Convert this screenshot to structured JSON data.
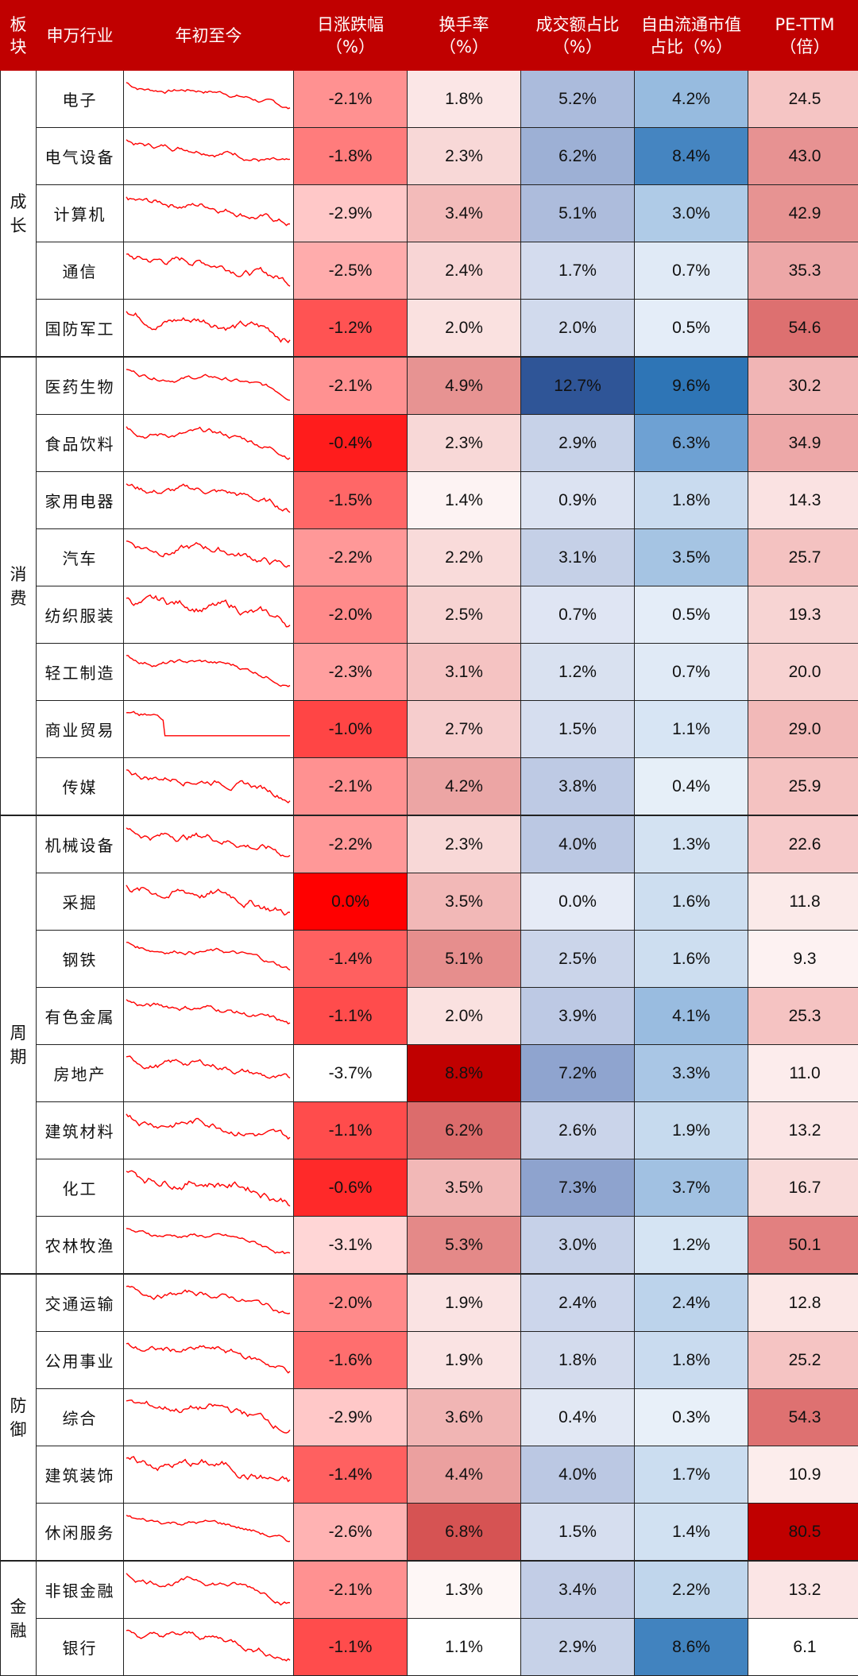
{
  "columns": {
    "block": [
      "板",
      "块"
    ],
    "industry": "申万行业",
    "ytd": "年初至今",
    "daily": [
      "日涨跌幅",
      "（%）"
    ],
    "turnover": [
      "换手率",
      "（%）"
    ],
    "volume_share": [
      "成交额占比",
      "（%）"
    ],
    "float_cap_share": [
      "自由流通市值",
      "占比（%）"
    ],
    "pe": [
      "PE-TTM",
      "（倍）"
    ]
  },
  "groups": [
    {
      "label": [
        "成",
        "长"
      ],
      "rows": [
        {
          "industry": "电子",
          "daily": "-2.1%",
          "turnover": "1.8%",
          "volume_share": "5.2%",
          "float_cap_share": "4.2%",
          "pe": "24.5"
        },
        {
          "industry": "电气设备",
          "daily": "-1.8%",
          "turnover": "2.3%",
          "volume_share": "6.2%",
          "float_cap_share": "8.4%",
          "pe": "43.0"
        },
        {
          "industry": "计算机",
          "daily": "-2.9%",
          "turnover": "3.4%",
          "volume_share": "5.1%",
          "float_cap_share": "3.0%",
          "pe": "42.9"
        },
        {
          "industry": "通信",
          "daily": "-2.5%",
          "turnover": "2.4%",
          "volume_share": "1.7%",
          "float_cap_share": "0.7%",
          "pe": "35.3"
        },
        {
          "industry": "国防军工",
          "daily": "-1.2%",
          "turnover": "2.0%",
          "volume_share": "2.0%",
          "float_cap_share": "0.5%",
          "pe": "54.6"
        }
      ]
    },
    {
      "label": [
        "消",
        "费"
      ],
      "rows": [
        {
          "industry": "医药生物",
          "daily": "-2.1%",
          "turnover": "4.9%",
          "volume_share": "12.7%",
          "float_cap_share": "9.6%",
          "pe": "30.2"
        },
        {
          "industry": "食品饮料",
          "daily": "-0.4%",
          "turnover": "2.3%",
          "volume_share": "2.9%",
          "float_cap_share": "6.3%",
          "pe": "34.9"
        },
        {
          "industry": "家用电器",
          "daily": "-1.5%",
          "turnover": "1.4%",
          "volume_share": "0.9%",
          "float_cap_share": "1.8%",
          "pe": "14.3"
        },
        {
          "industry": "汽车",
          "daily": "-2.2%",
          "turnover": "2.2%",
          "volume_share": "3.1%",
          "float_cap_share": "3.5%",
          "pe": "25.7"
        },
        {
          "industry": "纺织服装",
          "daily": "-2.0%",
          "turnover": "2.5%",
          "volume_share": "0.7%",
          "float_cap_share": "0.5%",
          "pe": "19.3"
        },
        {
          "industry": "轻工制造",
          "daily": "-2.3%",
          "turnover": "3.1%",
          "volume_share": "1.2%",
          "float_cap_share": "0.7%",
          "pe": "20.0"
        },
        {
          "industry": "商业贸易",
          "daily": "-1.0%",
          "turnover": "2.7%",
          "volume_share": "1.5%",
          "float_cap_share": "1.1%",
          "pe": "29.0"
        },
        {
          "industry": "传媒",
          "daily": "-2.1%",
          "turnover": "4.2%",
          "volume_share": "3.8%",
          "float_cap_share": "0.4%",
          "pe": "25.9"
        }
      ]
    },
    {
      "label": [
        "周",
        "期"
      ],
      "rows": [
        {
          "industry": "机械设备",
          "daily": "-2.2%",
          "turnover": "2.3%",
          "volume_share": "4.0%",
          "float_cap_share": "1.3%",
          "pe": "22.6"
        },
        {
          "industry": "采掘",
          "daily": "0.0%",
          "turnover": "3.5%",
          "volume_share": "0.0%",
          "float_cap_share": "1.6%",
          "pe": "11.8"
        },
        {
          "industry": "钢铁",
          "daily": "-1.4%",
          "turnover": "5.1%",
          "volume_share": "2.5%",
          "float_cap_share": "1.6%",
          "pe": "9.3"
        },
        {
          "industry": "有色金属",
          "daily": "-1.1%",
          "turnover": "2.0%",
          "volume_share": "3.9%",
          "float_cap_share": "4.1%",
          "pe": "25.3"
        },
        {
          "industry": "房地产",
          "daily": "-3.7%",
          "turnover": "8.8%",
          "volume_share": "7.2%",
          "float_cap_share": "3.3%",
          "pe": "11.0"
        },
        {
          "industry": "建筑材料",
          "daily": "-1.1%",
          "turnover": "6.2%",
          "volume_share": "2.6%",
          "float_cap_share": "1.9%",
          "pe": "13.2"
        },
        {
          "industry": "化工",
          "daily": "-0.6%",
          "turnover": "3.5%",
          "volume_share": "7.3%",
          "float_cap_share": "3.7%",
          "pe": "16.7"
        },
        {
          "industry": "农林牧渔",
          "daily": "-3.1%",
          "turnover": "5.3%",
          "volume_share": "3.0%",
          "float_cap_share": "1.2%",
          "pe": "50.1"
        }
      ]
    },
    {
      "label": [
        "防",
        "御"
      ],
      "rows": [
        {
          "industry": "交通运输",
          "daily": "-2.0%",
          "turnover": "1.9%",
          "volume_share": "2.4%",
          "float_cap_share": "2.4%",
          "pe": "12.8"
        },
        {
          "industry": "公用事业",
          "daily": "-1.6%",
          "turnover": "1.9%",
          "volume_share": "1.8%",
          "float_cap_share": "1.8%",
          "pe": "25.2"
        },
        {
          "industry": "综合",
          "daily": "-2.9%",
          "turnover": "3.6%",
          "volume_share": "0.4%",
          "float_cap_share": "0.3%",
          "pe": "54.3"
        },
        {
          "industry": "建筑装饰",
          "daily": "-1.4%",
          "turnover": "4.4%",
          "volume_share": "4.0%",
          "float_cap_share": "1.7%",
          "pe": "10.9"
        },
        {
          "industry": "休闲服务",
          "daily": "-2.6%",
          "turnover": "6.8%",
          "volume_share": "1.5%",
          "float_cap_share": "1.4%",
          "pe": "80.5"
        }
      ]
    },
    {
      "label": [
        "金",
        "融"
      ],
      "rows": [
        {
          "industry": "非银金融",
          "daily": "-2.1%",
          "turnover": "1.3%",
          "volume_share": "3.4%",
          "float_cap_share": "2.2%",
          "pe": "13.2"
        },
        {
          "industry": "银行",
          "daily": "-1.1%",
          "turnover": "1.1%",
          "volume_share": "2.9%",
          "float_cap_share": "8.6%",
          "pe": "6.1"
        }
      ]
    }
  ],
  "colors": {
    "header_bg": "#c00000",
    "red_strong": "#ff0000",
    "red_dark": "#c00000",
    "blue_dark": "#2f5597",
    "blue_mid": "#2e75b6",
    "sparkline": "#ff0000"
  }
}
